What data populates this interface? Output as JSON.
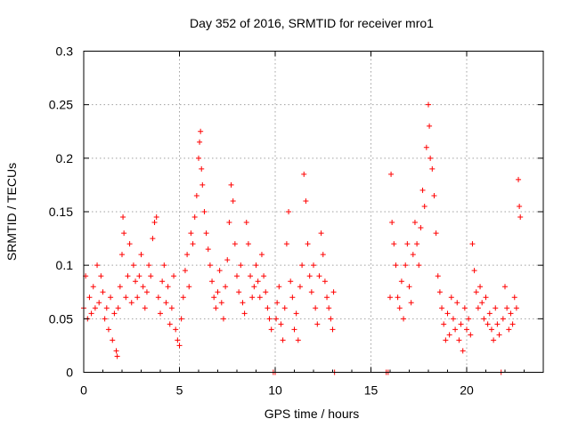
{
  "chart_data": {
    "type": "scatter",
    "title": "Day 352 of 2016, SRMTID for receiver mro1",
    "xlabel": "GPS time / hours",
    "ylabel": "SRMTID / TECUs",
    "xlim": [
      0,
      24
    ],
    "ylim": [
      0,
      0.3
    ],
    "x_ticks": [
      0,
      5,
      10,
      15,
      20
    ],
    "x_tick_labels": [
      "0",
      "5",
      "10",
      "15",
      "20"
    ],
    "y_ticks": [
      0,
      0.05,
      0.1,
      0.15,
      0.2,
      0.25,
      0.3
    ],
    "y_tick_labels": [
      "0",
      "0.05",
      "0.1",
      "0.15",
      "0.2",
      "0.25",
      "0.3"
    ],
    "grid": true,
    "marker": "+",
    "color": "#ff0000",
    "series": [
      {
        "name": "SRMTID",
        "points": [
          [
            0.0,
            0.06
          ],
          [
            0.1,
            0.09
          ],
          [
            0.2,
            0.05
          ],
          [
            0.3,
            0.07
          ],
          [
            0.4,
            0.055
          ],
          [
            0.5,
            0.08
          ],
          [
            0.6,
            0.06
          ],
          [
            0.7,
            0.1
          ],
          [
            0.8,
            0.065
          ],
          [
            0.9,
            0.09
          ],
          [
            1.0,
            0.075
          ],
          [
            1.1,
            0.05
          ],
          [
            1.2,
            0.06
          ],
          [
            1.3,
            0.04
          ],
          [
            1.4,
            0.07
          ],
          [
            1.5,
            0.03
          ],
          [
            1.6,
            0.055
          ],
          [
            1.7,
            0.02
          ],
          [
            1.75,
            0.015
          ],
          [
            1.8,
            0.06
          ],
          [
            1.9,
            0.08
          ],
          [
            2.0,
            0.11
          ],
          [
            2.05,
            0.145
          ],
          [
            2.1,
            0.13
          ],
          [
            2.2,
            0.07
          ],
          [
            2.3,
            0.09
          ],
          [
            2.4,
            0.12
          ],
          [
            2.5,
            0.065
          ],
          [
            2.6,
            0.1
          ],
          [
            2.7,
            0.085
          ],
          [
            2.8,
            0.07
          ],
          [
            2.9,
            0.09
          ],
          [
            3.0,
            0.11
          ],
          [
            3.1,
            0.08
          ],
          [
            3.2,
            0.06
          ],
          [
            3.3,
            0.075
          ],
          [
            3.4,
            0.1
          ],
          [
            3.5,
            0.09
          ],
          [
            3.6,
            0.125
          ],
          [
            3.7,
            0.14
          ],
          [
            3.8,
            0.145
          ],
          [
            3.9,
            0.07
          ],
          [
            4.0,
            0.055
          ],
          [
            4.1,
            0.085
          ],
          [
            4.2,
            0.1
          ],
          [
            4.3,
            0.065
          ],
          [
            4.4,
            0.08
          ],
          [
            4.5,
            0.045
          ],
          [
            4.6,
            0.06
          ],
          [
            4.7,
            0.09
          ],
          [
            4.8,
            0.04
          ],
          [
            4.9,
            0.03
          ],
          [
            5.0,
            0.025
          ],
          [
            5.1,
            0.05
          ],
          [
            5.2,
            0.07
          ],
          [
            5.3,
            0.095
          ],
          [
            5.4,
            0.11
          ],
          [
            5.5,
            0.08
          ],
          [
            5.6,
            0.13
          ],
          [
            5.7,
            0.12
          ],
          [
            5.8,
            0.145
          ],
          [
            5.9,
            0.165
          ],
          [
            6.0,
            0.2
          ],
          [
            6.05,
            0.215
          ],
          [
            6.1,
            0.225
          ],
          [
            6.15,
            0.19
          ],
          [
            6.2,
            0.175
          ],
          [
            6.3,
            0.15
          ],
          [
            6.4,
            0.13
          ],
          [
            6.5,
            0.115
          ],
          [
            6.6,
            0.1
          ],
          [
            6.7,
            0.085
          ],
          [
            6.8,
            0.07
          ],
          [
            6.9,
            0.06
          ],
          [
            7.0,
            0.075
          ],
          [
            7.1,
            0.095
          ],
          [
            7.2,
            0.065
          ],
          [
            7.3,
            0.05
          ],
          [
            7.4,
            0.08
          ],
          [
            7.5,
            0.105
          ],
          [
            7.6,
            0.14
          ],
          [
            7.7,
            0.175
          ],
          [
            7.8,
            0.16
          ],
          [
            7.9,
            0.12
          ],
          [
            8.0,
            0.09
          ],
          [
            8.1,
            0.075
          ],
          [
            8.2,
            0.1
          ],
          [
            8.3,
            0.065
          ],
          [
            8.4,
            0.055
          ],
          [
            8.5,
            0.14
          ],
          [
            8.6,
            0.12
          ],
          [
            8.7,
            0.09
          ],
          [
            8.8,
            0.07
          ],
          [
            8.9,
            0.08
          ],
          [
            9.0,
            0.1
          ],
          [
            9.1,
            0.085
          ],
          [
            9.2,
            0.07
          ],
          [
            9.3,
            0.11
          ],
          [
            9.4,
            0.09
          ],
          [
            9.5,
            0.075
          ],
          [
            9.6,
            0.06
          ],
          [
            9.7,
            0.05
          ],
          [
            9.8,
            0.04
          ],
          [
            9.9,
            0.0
          ],
          [
            10.0,
            0.0
          ],
          [
            10.05,
            0.05
          ],
          [
            10.1,
            0.065
          ],
          [
            10.2,
            0.08
          ],
          [
            10.3,
            0.045
          ],
          [
            10.4,
            0.03
          ],
          [
            10.5,
            0.06
          ],
          [
            10.6,
            0.12
          ],
          [
            10.7,
            0.15
          ],
          [
            10.8,
            0.085
          ],
          [
            10.9,
            0.07
          ],
          [
            11.0,
            0.04
          ],
          [
            11.1,
            0.055
          ],
          [
            11.2,
            0.03
          ],
          [
            11.3,
            0.08
          ],
          [
            11.4,
            0.1
          ],
          [
            11.5,
            0.185
          ],
          [
            11.6,
            0.16
          ],
          [
            11.7,
            0.12
          ],
          [
            11.8,
            0.09
          ],
          [
            11.9,
            0.075
          ],
          [
            12.0,
            0.1
          ],
          [
            12.1,
            0.06
          ],
          [
            12.2,
            0.045
          ],
          [
            12.3,
            0.09
          ],
          [
            12.4,
            0.13
          ],
          [
            12.5,
            0.11
          ],
          [
            12.6,
            0.085
          ],
          [
            12.7,
            0.07
          ],
          [
            12.8,
            0.06
          ],
          [
            12.9,
            0.05
          ],
          [
            13.0,
            0.04
          ],
          [
            13.05,
            0.075
          ],
          [
            13.1,
            0.0
          ],
          [
            15.8,
            0.0
          ],
          [
            15.9,
            0.0
          ],
          [
            16.0,
            0.07
          ],
          [
            16.05,
            0.185
          ],
          [
            16.1,
            0.14
          ],
          [
            16.2,
            0.12
          ],
          [
            16.3,
            0.1
          ],
          [
            16.4,
            0.07
          ],
          [
            16.5,
            0.06
          ],
          [
            16.6,
            0.085
          ],
          [
            16.7,
            0.05
          ],
          [
            16.8,
            0.1
          ],
          [
            16.9,
            0.12
          ],
          [
            17.0,
            0.08
          ],
          [
            17.1,
            0.065
          ],
          [
            17.2,
            0.11
          ],
          [
            17.3,
            0.14
          ],
          [
            17.4,
            0.12
          ],
          [
            17.5,
            0.1
          ],
          [
            17.6,
            0.135
          ],
          [
            17.7,
            0.17
          ],
          [
            17.8,
            0.155
          ],
          [
            17.9,
            0.21
          ],
          [
            18.0,
            0.25
          ],
          [
            18.05,
            0.23
          ],
          [
            18.1,
            0.2
          ],
          [
            18.2,
            0.19
          ],
          [
            18.3,
            0.165
          ],
          [
            18.4,
            0.13
          ],
          [
            18.5,
            0.09
          ],
          [
            18.6,
            0.075
          ],
          [
            18.7,
            0.06
          ],
          [
            18.8,
            0.045
          ],
          [
            18.9,
            0.03
          ],
          [
            19.0,
            0.055
          ],
          [
            19.1,
            0.035
          ],
          [
            19.2,
            0.07
          ],
          [
            19.3,
            0.05
          ],
          [
            19.4,
            0.04
          ],
          [
            19.5,
            0.065
          ],
          [
            19.6,
            0.03
          ],
          [
            19.7,
            0.045
          ],
          [
            19.8,
            0.02
          ],
          [
            19.9,
            0.06
          ],
          [
            20.0,
            0.04
          ],
          [
            20.1,
            0.05
          ],
          [
            20.2,
            0.035
          ],
          [
            20.3,
            0.12
          ],
          [
            20.4,
            0.095
          ],
          [
            20.5,
            0.075
          ],
          [
            20.6,
            0.06
          ],
          [
            20.7,
            0.08
          ],
          [
            20.8,
            0.065
          ],
          [
            20.9,
            0.05
          ],
          [
            21.0,
            0.07
          ],
          [
            21.1,
            0.045
          ],
          [
            21.2,
            0.055
          ],
          [
            21.3,
            0.04
          ],
          [
            21.4,
            0.03
          ],
          [
            21.5,
            0.06
          ],
          [
            21.6,
            0.045
          ],
          [
            21.7,
            0.035
          ],
          [
            21.8,
            0.0
          ],
          [
            21.9,
            0.05
          ],
          [
            22.0,
            0.08
          ],
          [
            22.1,
            0.06
          ],
          [
            22.2,
            0.04
          ],
          [
            22.3,
            0.055
          ],
          [
            22.4,
            0.045
          ],
          [
            22.5,
            0.07
          ],
          [
            22.6,
            0.06
          ],
          [
            22.7,
            0.18
          ],
          [
            22.75,
            0.155
          ],
          [
            22.8,
            0.145
          ]
        ]
      }
    ]
  }
}
